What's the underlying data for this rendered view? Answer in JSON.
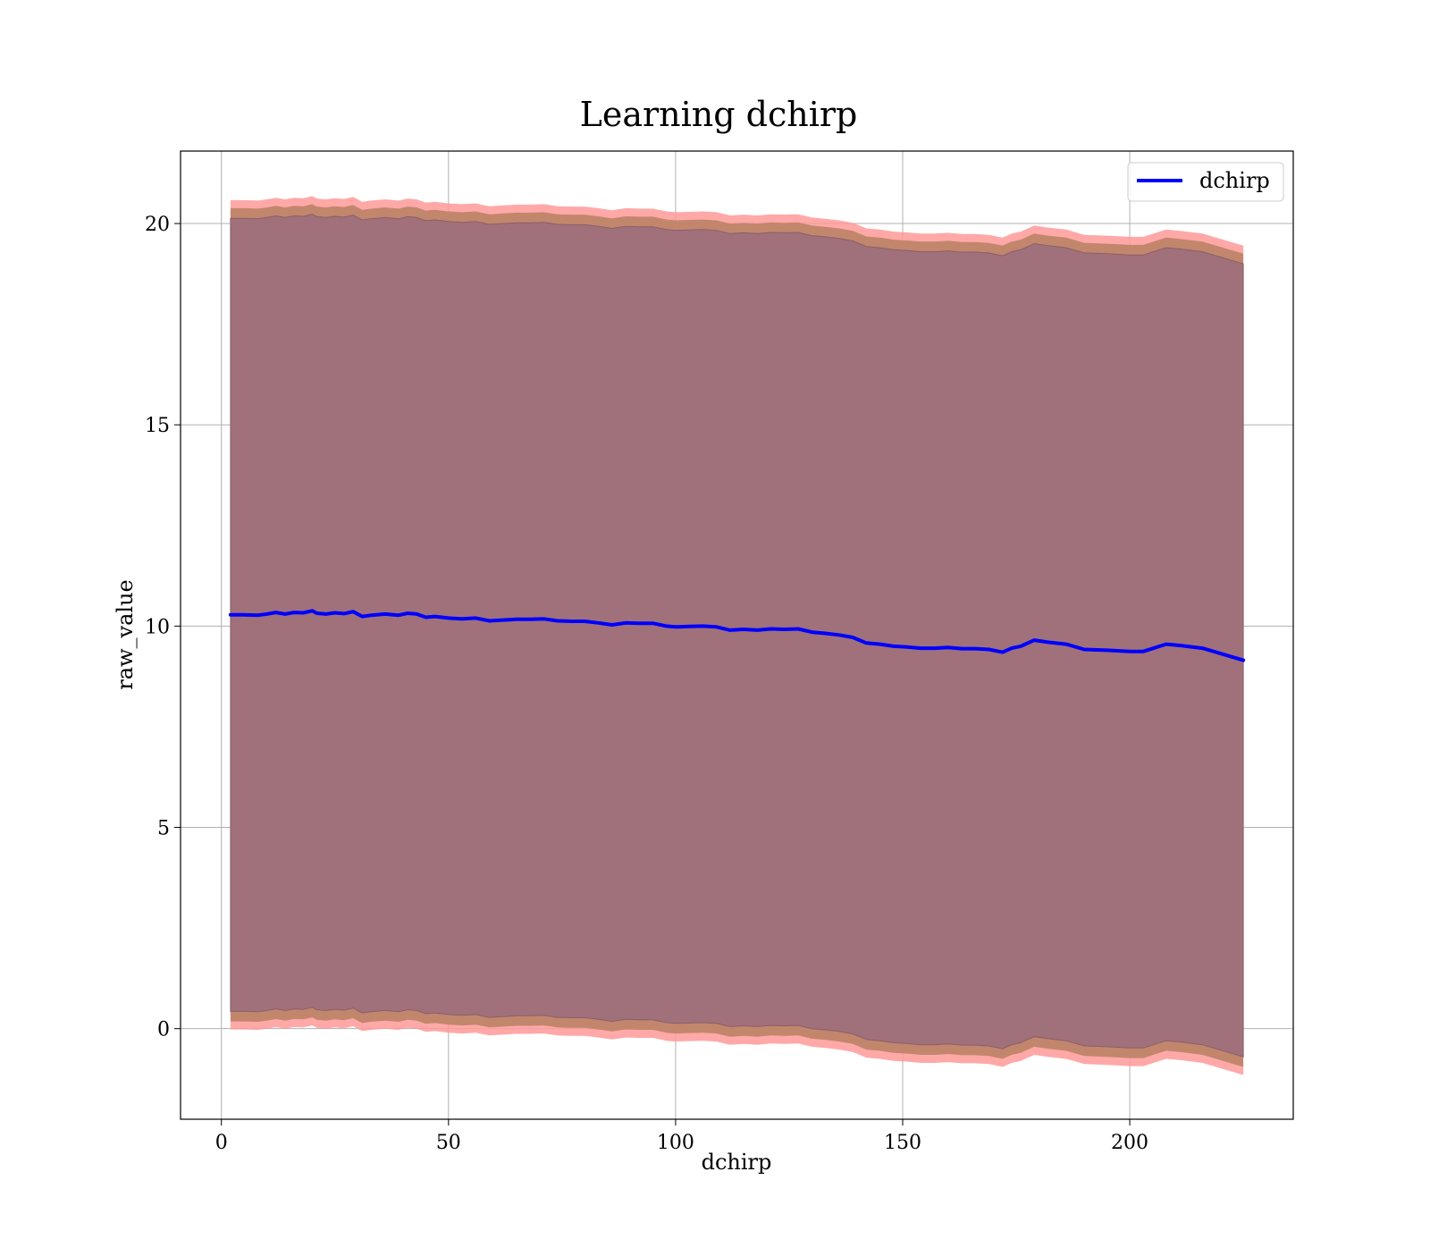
{
  "chart_data": {
    "type": "line",
    "title": "Learning dchirp",
    "xlabel": "dchirp",
    "ylabel": "raw_value",
    "xlim": [
      -9,
      236
    ],
    "ylim": [
      -2.25,
      21.8
    ],
    "xticks": [
      0,
      50,
      100,
      150,
      200
    ],
    "yticks": [
      0,
      5,
      10,
      15,
      20
    ],
    "grid": true,
    "legend": {
      "position": "top-right",
      "entries": [
        "dchirp"
      ]
    },
    "colors": {
      "line": "#0000ff",
      "outer_band": "#ff9999",
      "inner_band": "#a0717a",
      "mid_band": "#c2866c",
      "grid": "#b0b0b0"
    },
    "series": [
      {
        "name": "dchirp",
        "x": [
          2,
          5,
          8,
          10,
          12,
          14,
          16,
          18,
          20,
          21,
          23,
          25,
          27,
          29,
          31,
          33,
          36,
          39,
          41,
          43,
          45,
          47,
          50,
          53,
          56,
          59,
          62,
          65,
          68,
          71,
          74,
          77,
          80,
          83,
          86,
          89,
          92,
          95,
          98,
          100,
          103,
          106,
          109,
          112,
          115,
          118,
          121,
          124,
          127,
          130,
          133,
          136,
          139,
          142,
          145,
          148,
          151,
          154,
          157,
          160,
          163,
          166,
          169,
          172,
          174,
          176,
          179,
          182,
          186,
          190,
          195,
          200,
          203,
          208,
          211,
          216,
          225
        ],
        "y": [
          10.28,
          10.28,
          10.27,
          10.3,
          10.34,
          10.3,
          10.34,
          10.33,
          10.38,
          10.32,
          10.3,
          10.33,
          10.31,
          10.36,
          10.24,
          10.27,
          10.3,
          10.27,
          10.32,
          10.3,
          10.22,
          10.24,
          10.2,
          10.18,
          10.2,
          10.13,
          10.15,
          10.17,
          10.17,
          10.18,
          10.13,
          10.12,
          10.12,
          10.08,
          10.03,
          10.08,
          10.07,
          10.07,
          10.0,
          9.98,
          9.99,
          10.0,
          9.98,
          9.9,
          9.92,
          9.9,
          9.93,
          9.92,
          9.93,
          9.85,
          9.82,
          9.78,
          9.72,
          9.58,
          9.55,
          9.5,
          9.48,
          9.45,
          9.45,
          9.47,
          9.44,
          9.44,
          9.42,
          9.35,
          9.45,
          9.5,
          9.65,
          9.6,
          9.55,
          9.42,
          9.4,
          9.37,
          9.37,
          9.55,
          9.52,
          9.45,
          9.15
        ],
        "band_inner": 9.85,
        "band_mid": 10.1,
        "band_outer": 10.3
      }
    ]
  }
}
